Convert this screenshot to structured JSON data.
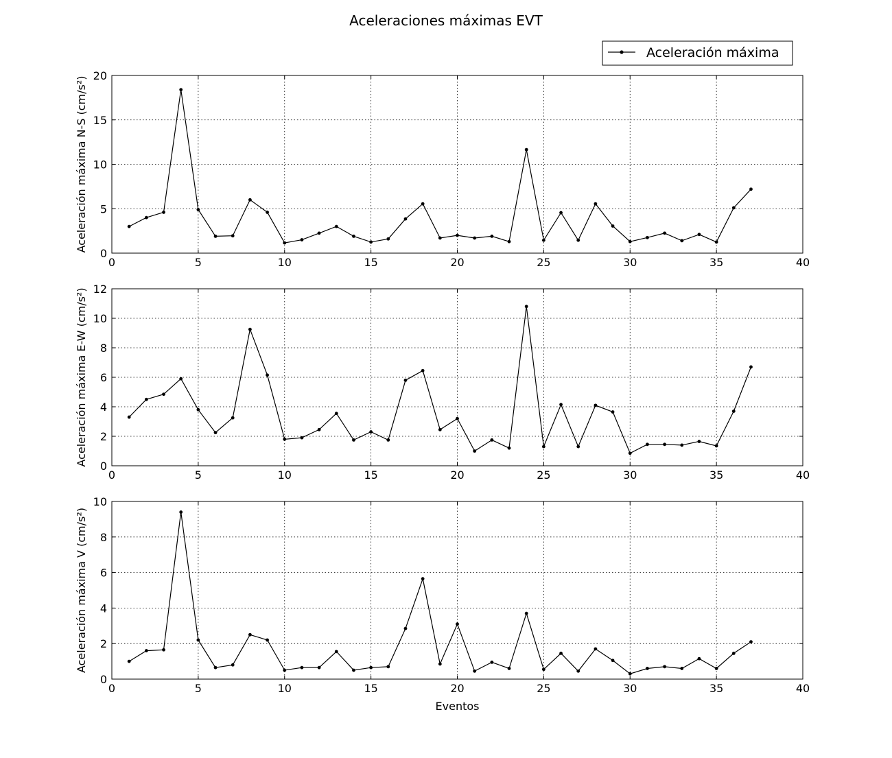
{
  "figure": {
    "title": "Aceleraciones máximas EVT",
    "xlabel": "Eventos",
    "legend": {
      "label": "Aceleración máxima",
      "placement": "top-right"
    },
    "line_color": "#000000"
  },
  "chart_data": [
    {
      "type": "line",
      "panel": "N-S",
      "ylabel": "Aceleración máxima N-S (cm/s²)",
      "xlim": [
        0,
        40
      ],
      "ylim": [
        0,
        20
      ],
      "xticks": [
        "0",
        "5",
        "10",
        "15",
        "20",
        "25",
        "30",
        "35",
        "40"
      ],
      "yticks": [
        "0",
        "5",
        "10",
        "15",
        "20"
      ],
      "grid": true,
      "series": [
        {
          "name": "Aceleración máxima",
          "x": [
            1,
            2,
            3,
            4,
            5,
            6,
            7,
            8,
            9,
            10,
            11,
            12,
            13,
            14,
            15,
            16,
            17,
            18,
            19,
            20,
            21,
            22,
            23,
            24,
            25,
            26,
            27,
            28,
            29,
            30,
            31,
            32,
            33,
            34,
            35,
            36,
            37
          ],
          "y": [
            3.0,
            4.0,
            4.6,
            18.4,
            4.9,
            1.9,
            1.95,
            6.0,
            4.6,
            1.15,
            1.5,
            2.25,
            3.0,
            1.9,
            1.25,
            1.6,
            3.85,
            5.55,
            1.7,
            2.0,
            1.7,
            1.9,
            1.3,
            11.65,
            1.45,
            4.55,
            1.45,
            5.55,
            3.05,
            1.3,
            1.75,
            2.25,
            1.4,
            2.1,
            1.25,
            5.1,
            7.2
          ]
        }
      ]
    },
    {
      "type": "line",
      "panel": "E-W",
      "ylabel": "Aceleración máxima E-W (cm/s²)",
      "xlim": [
        0,
        40
      ],
      "ylim": [
        0,
        12
      ],
      "xticks": [
        "0",
        "5",
        "10",
        "15",
        "20",
        "25",
        "30",
        "35",
        "40"
      ],
      "yticks": [
        "0",
        "2",
        "4",
        "6",
        "8",
        "10",
        "12"
      ],
      "grid": true,
      "series": [
        {
          "name": "Aceleración máxima",
          "x": [
            1,
            2,
            3,
            4,
            5,
            6,
            7,
            8,
            9,
            10,
            11,
            12,
            13,
            14,
            15,
            16,
            17,
            18,
            19,
            20,
            21,
            22,
            23,
            24,
            25,
            26,
            27,
            28,
            29,
            30,
            31,
            32,
            33,
            34,
            35,
            36,
            37
          ],
          "y": [
            3.3,
            4.5,
            4.85,
            5.9,
            3.8,
            2.25,
            3.25,
            9.25,
            6.15,
            1.8,
            1.9,
            2.45,
            3.55,
            1.75,
            2.3,
            1.75,
            5.8,
            6.45,
            2.45,
            3.2,
            1.0,
            1.75,
            1.2,
            10.8,
            1.3,
            4.15,
            1.3,
            4.1,
            3.65,
            0.85,
            1.45,
            1.45,
            1.4,
            1.65,
            1.35,
            3.7,
            6.7
          ]
        }
      ]
    },
    {
      "type": "line",
      "panel": "V",
      "ylabel": "Aceleración máxima V (cm/s²)",
      "xlabel": "Eventos",
      "xlim": [
        0,
        40
      ],
      "ylim": [
        0,
        10
      ],
      "xticks": [
        "0",
        "5",
        "10",
        "15",
        "20",
        "25",
        "30",
        "35",
        "40"
      ],
      "yticks": [
        "0",
        "2",
        "4",
        "6",
        "8",
        "10"
      ],
      "grid": true,
      "series": [
        {
          "name": "Aceleración máxima",
          "x": [
            1,
            2,
            3,
            4,
            5,
            6,
            7,
            8,
            9,
            10,
            11,
            12,
            13,
            14,
            15,
            16,
            17,
            18,
            19,
            20,
            21,
            22,
            23,
            24,
            25,
            26,
            27,
            28,
            29,
            30,
            31,
            32,
            33,
            34,
            35,
            36,
            37
          ],
          "y": [
            1.0,
            1.6,
            1.65,
            9.4,
            2.2,
            0.65,
            0.8,
            2.5,
            2.2,
            0.5,
            0.65,
            0.65,
            1.55,
            0.5,
            0.65,
            0.7,
            2.85,
            5.65,
            0.85,
            3.1,
            0.45,
            0.95,
            0.6,
            3.7,
            0.55,
            1.45,
            0.45,
            1.7,
            1.05,
            0.3,
            0.6,
            0.7,
            0.6,
            1.15,
            0.6,
            1.45,
            2.1
          ]
        }
      ]
    }
  ]
}
